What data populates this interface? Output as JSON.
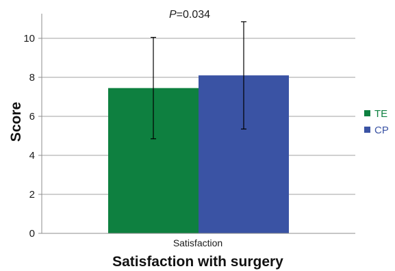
{
  "chart_data": {
    "type": "bar",
    "categories": [
      "Satisfaction"
    ],
    "series": [
      {
        "name": "TE",
        "values": [
          7.45
        ],
        "error_low": [
          4.85
        ],
        "error_high": [
          10.05
        ],
        "color": "#0e8040"
      },
      {
        "name": "CP",
        "values": [
          8.1
        ],
        "error_low": [
          5.35
        ],
        "error_high": [
          10.85
        ],
        "color": "#3a53a4"
      }
    ],
    "xlabel": "Satisfaction with surgery",
    "ylabel": "Score",
    "ylim": [
      0,
      11
    ],
    "yticks": [
      "0",
      "2",
      "4",
      "6",
      "8",
      "10"
    ],
    "ytick_values": [
      0,
      2,
      4,
      6,
      8,
      10
    ],
    "grid": true,
    "legend_position": "right",
    "annotation": {
      "prefix": "P",
      "text": "=0.034"
    },
    "colors": {
      "grid": "#a0a0a0",
      "axis": "#8c8c8c",
      "error_bar": "#000000"
    }
  }
}
